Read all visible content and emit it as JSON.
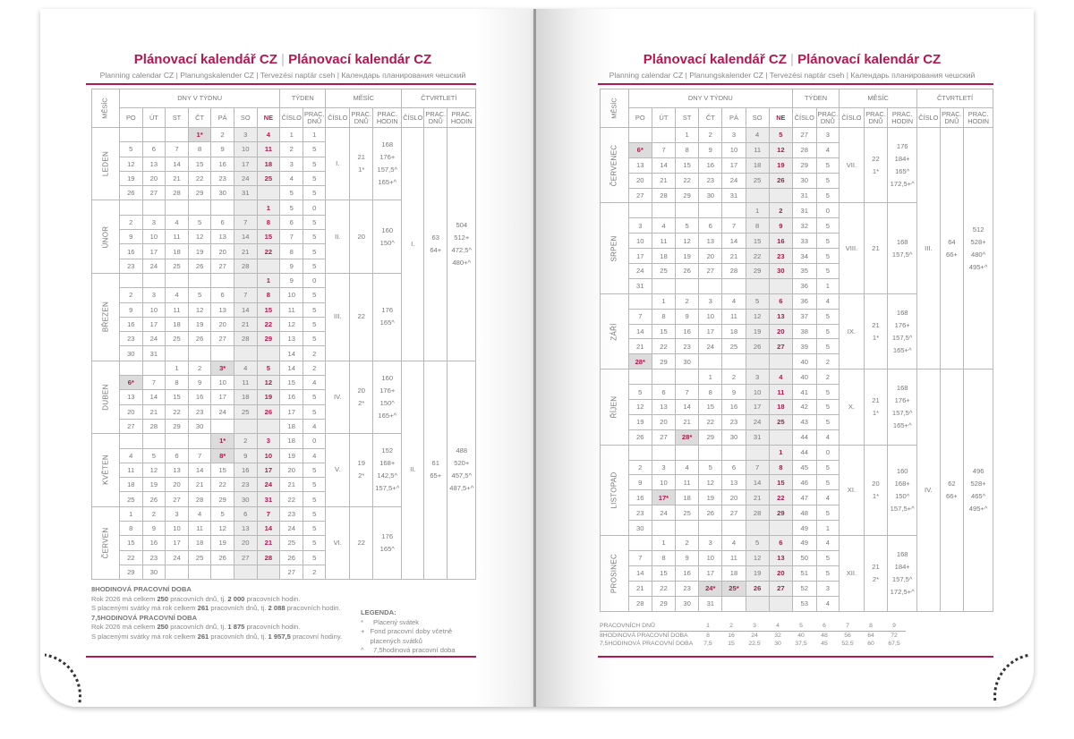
{
  "title": {
    "main_cz": "Plánovací kalendář CZ",
    "separator": "|",
    "main_sk": "Plánovací kalendár CZ"
  },
  "subtitle": "Planning calendar CZ | Planungskalender CZ | Tervezési naptár cseh | Календарь планирования чешский",
  "colors": {
    "accent": "#b5174f",
    "weekend_bg": "#ececec",
    "holiday_bg": "#dcdcdc",
    "text": "#777777"
  },
  "headers": {
    "month": "MĚSÍC",
    "days_of_week": "DNY V TÝDNU",
    "week": "TÝDEN",
    "month_group": "MĚSÍC",
    "quarter": "ČTVRTLETÍ",
    "weekdays": [
      "PO",
      "ÚT",
      "ST",
      "ČT",
      "PÁ",
      "SO",
      "NE"
    ],
    "number": "ČÍSLO",
    "work_days": "PRAC. DNŮ",
    "work_hours": "PRAC. HODIN"
  },
  "year": 2026,
  "holiday_mark": "*",
  "pages": [
    {
      "months": [
        {
          "name": "LEDEN",
          "roman": "I.",
          "start_weekday": 3,
          "days": 31,
          "holidays": [
            1
          ],
          "work_days": "21",
          "paid_holidays": "1*",
          "hours": [
            "168",
            "176+",
            "157,5^",
            "165+^"
          ],
          "weeks": [
            [
              1,
              1
            ],
            [
              2,
              5
            ],
            [
              3,
              5
            ],
            [
              4,
              5
            ],
            [
              5,
              5
            ]
          ]
        },
        {
          "name": "ÚNOR",
          "roman": "II.",
          "start_weekday": 6,
          "days": 28,
          "holidays": [],
          "work_days": "20",
          "paid_holidays": "",
          "hours": [
            "160",
            "150^"
          ],
          "weeks": [
            [
              5,
              0
            ],
            [
              6,
              5
            ],
            [
              7,
              5
            ],
            [
              8,
              5
            ],
            [
              9,
              5
            ]
          ]
        },
        {
          "name": "BŘEZEN",
          "roman": "III.",
          "start_weekday": 6,
          "days": 31,
          "holidays": [],
          "work_days": "22",
          "paid_holidays": "",
          "hours": [
            "176",
            "165^"
          ],
          "weeks": [
            [
              9,
              0
            ],
            [
              10,
              5
            ],
            [
              11,
              5
            ],
            [
              12,
              5
            ],
            [
              13,
              5
            ],
            [
              14,
              2
            ]
          ]
        },
        {
          "name": "DUBEN",
          "roman": "IV.",
          "start_weekday": 2,
          "days": 30,
          "holidays": [
            3,
            6
          ],
          "work_days": "20",
          "paid_holidays": "2*",
          "hours": [
            "160",
            "176+",
            "150^",
            "165+^"
          ],
          "weeks": [
            [
              14,
              2
            ],
            [
              15,
              4
            ],
            [
              16,
              5
            ],
            [
              17,
              5
            ],
            [
              18,
              4
            ]
          ]
        },
        {
          "name": "KVĚTEN",
          "roman": "V.",
          "start_weekday": 4,
          "days": 31,
          "holidays": [
            1,
            8
          ],
          "work_days": "19",
          "paid_holidays": "2*",
          "hours": [
            "152",
            "168+",
            "142,5^",
            "157,5+^"
          ],
          "weeks": [
            [
              18,
              0
            ],
            [
              19,
              4
            ],
            [
              20,
              5
            ],
            [
              21,
              5
            ],
            [
              22,
              5
            ]
          ]
        },
        {
          "name": "ČERVEN",
          "roman": "VI.",
          "start_weekday": 0,
          "days": 30,
          "holidays": [],
          "work_days": "22",
          "paid_holidays": "",
          "hours": [
            "176",
            "165^"
          ],
          "weeks": [
            [
              23,
              5
            ],
            [
              24,
              5
            ],
            [
              25,
              5
            ],
            [
              26,
              5
            ],
            [
              27,
              2
            ]
          ]
        }
      ],
      "quarters": [
        {
          "roman": "I.",
          "work_days": [
            "63",
            "64+"
          ],
          "hours": [
            "504",
            "512+",
            "472,5^",
            "480+^"
          ]
        },
        {
          "roman": "II.",
          "work_days": [
            "61",
            "65+"
          ],
          "hours": [
            "488",
            "520+",
            "457,5^",
            "487,5+^"
          ]
        }
      ]
    },
    {
      "months": [
        {
          "name": "ČERVENEC",
          "roman": "VII.",
          "start_weekday": 2,
          "days": 31,
          "holidays": [
            5,
            6
          ],
          "work_days": "22",
          "paid_holidays": "1*",
          "hours": [
            "176",
            "184+",
            "165^",
            "172,5+^"
          ],
          "weeks": [
            [
              27,
              3
            ],
            [
              28,
              4
            ],
            [
              29,
              5
            ],
            [
              30,
              5
            ],
            [
              31,
              5
            ]
          ]
        },
        {
          "name": "SRPEN",
          "roman": "VIII.",
          "start_weekday": 5,
          "days": 31,
          "holidays": [],
          "work_days": "21",
          "paid_holidays": "",
          "hours": [
            "168",
            "157,5^"
          ],
          "weeks": [
            [
              31,
              0
            ],
            [
              32,
              5
            ],
            [
              33,
              5
            ],
            [
              34,
              5
            ],
            [
              35,
              5
            ],
            [
              36,
              1
            ]
          ]
        },
        {
          "name": "ZÁŘÍ",
          "roman": "IX.",
          "start_weekday": 1,
          "days": 30,
          "holidays": [
            28
          ],
          "work_days": "21",
          "paid_holidays": "1*",
          "hours": [
            "168",
            "176+",
            "157,5^",
            "165+^"
          ],
          "weeks": [
            [
              36,
              4
            ],
            [
              37,
              5
            ],
            [
              38,
              5
            ],
            [
              39,
              5
            ],
            [
              40,
              2
            ]
          ]
        },
        {
          "name": "ŘÍJEN",
          "roman": "X.",
          "start_weekday": 3,
          "days": 31,
          "holidays": [
            28
          ],
          "work_days": "21",
          "paid_holidays": "1*",
          "hours": [
            "168",
            "176+",
            "157,5^",
            "165+^"
          ],
          "weeks": [
            [
              40,
              2
            ],
            [
              41,
              5
            ],
            [
              42,
              5
            ],
            [
              43,
              5
            ],
            [
              44,
              4
            ]
          ]
        },
        {
          "name": "LISTOPAD",
          "roman": "XI.",
          "start_weekday": 6,
          "days": 30,
          "holidays": [
            17
          ],
          "work_days": "20",
          "paid_holidays": "1*",
          "hours": [
            "160",
            "168+",
            "150^",
            "157,5+^"
          ],
          "weeks": [
            [
              44,
              0
            ],
            [
              45,
              5
            ],
            [
              46,
              5
            ],
            [
              47,
              4
            ],
            [
              48,
              5
            ],
            [
              49,
              1
            ]
          ]
        },
        {
          "name": "PROSINEC",
          "roman": "XII.",
          "start_weekday": 1,
          "days": 31,
          "holidays": [
            24,
            25,
            26
          ],
          "work_days": "21",
          "paid_holidays": "2*",
          "hours": [
            "168",
            "184+",
            "157,5^",
            "172,5+^"
          ],
          "weeks": [
            [
              49,
              4
            ],
            [
              50,
              5
            ],
            [
              51,
              5
            ],
            [
              52,
              3
            ],
            [
              53,
              4
            ]
          ]
        }
      ],
      "quarters": [
        {
          "roman": "III.",
          "work_days": [
            "64",
            "66+"
          ],
          "hours": [
            "512",
            "528+",
            "480^",
            "495+^"
          ]
        },
        {
          "roman": "IV.",
          "work_days": [
            "62",
            "66+"
          ],
          "hours": [
            "496",
            "528+",
            "465^",
            "495+^"
          ]
        }
      ]
    }
  ],
  "footer": {
    "h8_title": "8HODINOVÁ PRACOVNÍ DOBA",
    "h8_line1": [
      "Rok 2026 má celkem ",
      "250",
      " pracovních dnů, tj. ",
      "2 000",
      " pracovních hodin."
    ],
    "h8_line2": [
      "S placenými svátky má rok celkem ",
      "261",
      " pracovních dnů, tj. ",
      "2 088",
      " pracovních hodin."
    ],
    "h75_title": "7,5HODINOVÁ PRACOVNÍ DOBA",
    "h75_line1": [
      "Rok 2026 má celkem ",
      "250",
      " pracovních dnů, tj. ",
      "1 875",
      " pracovních hodin."
    ],
    "h75_line2": [
      "S placenými svátky má rok celkem ",
      "261",
      " pracovních dnů, tj. ",
      "1 957,5",
      " pracovní hodiny."
    ]
  },
  "legend": {
    "title": "LEGENDA:",
    "items": [
      {
        "symbol": "*",
        "text": "Placený svátek"
      },
      {
        "symbol": "+",
        "text": "Fond pracovní doby včetně placených svátků"
      },
      {
        "symbol": "^",
        "text": "7,5hodinová pracovní doba"
      }
    ]
  },
  "reference_table": {
    "rows": [
      {
        "label": "PRACOVNÍCH DNŮ",
        "values": [
          "1",
          "2",
          "3",
          "4",
          "5",
          "6",
          "7",
          "8",
          "9"
        ]
      },
      {
        "label": "8HODINOVÁ PRACOVNÍ DOBA",
        "values": [
          "8",
          "16",
          "24",
          "32",
          "40",
          "48",
          "56",
          "64",
          "72"
        ]
      },
      {
        "label": "7,5HODINOVÁ PRACOVNÍ DOBA",
        "values": [
          "7,5",
          "15",
          "22,5",
          "30",
          "37,5",
          "45",
          "52,5",
          "60",
          "67,5"
        ]
      }
    ]
  }
}
